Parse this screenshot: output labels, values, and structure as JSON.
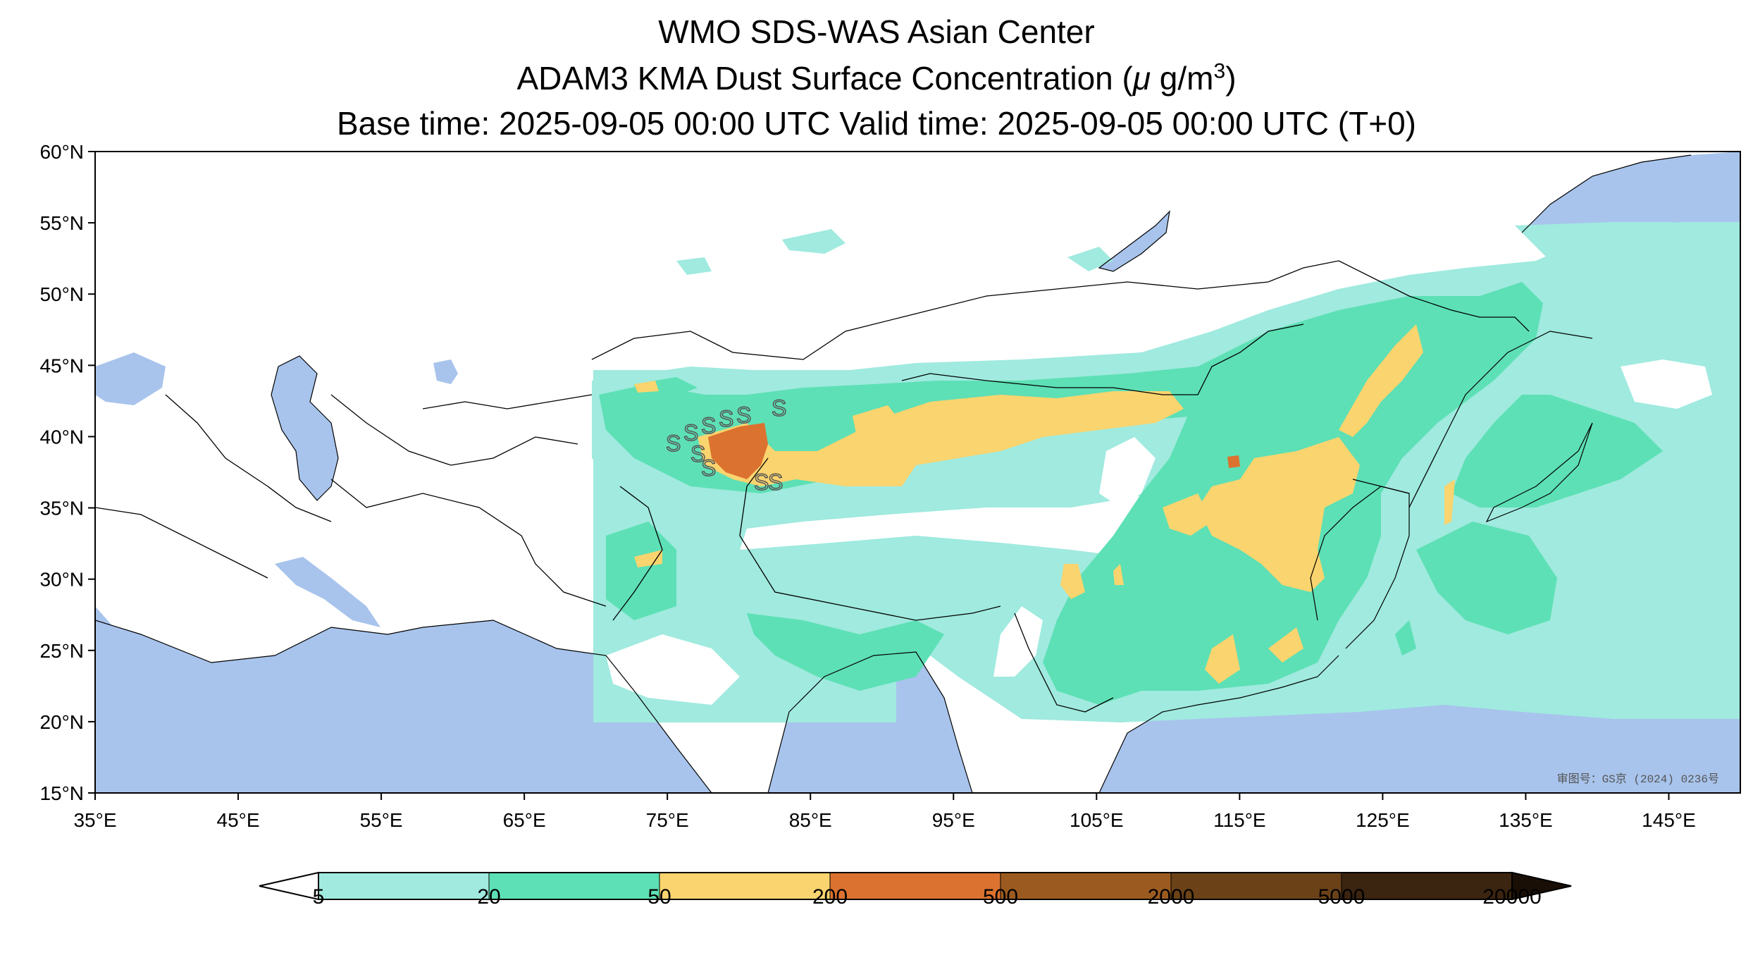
{
  "title": {
    "line1": "WMO SDS-WAS Asian Center",
    "line2_prefix": "ADAM3 KMA Dust Surface Concentration (",
    "line2_unit_mu": "μ",
    "line2_unit_g": " g/m",
    "line2_unit_exp": "3",
    "line2_suffix": ")",
    "line3": "Base time: 2025-09-05 00:00 UTC Valid time: 2025-09-05 00:00 UTC (T+0)"
  },
  "map": {
    "lat_ticks": [
      "60°N",
      "55°N",
      "50°N",
      "45°N",
      "40°N",
      "35°N",
      "30°N",
      "25°N",
      "20°N",
      "15°N"
    ],
    "lon_ticks": [
      "35°E",
      "45°E",
      "55°E",
      "65°E",
      "75°E",
      "85°E",
      "95°E",
      "105°E",
      "115°E",
      "125°E",
      "135°E",
      "145°E"
    ],
    "extent": {
      "lon_min": 35,
      "lon_max": 150,
      "lat_min": 15,
      "lat_max": 60
    },
    "watermark": "审图号：GS京 (2024) 0236号",
    "ocean_color": "#a8c4ec",
    "land_color": "#ffffff",
    "storm_marker": "S"
  },
  "colorbar": {
    "levels": [
      "5",
      "20",
      "50",
      "200",
      "500",
      "2000",
      "5000",
      "20000"
    ],
    "colors": [
      "#a0eadf",
      "#5de0b5",
      "#fad46e",
      "#db7230",
      "#9b5b20",
      "#6b4218",
      "#3b2410",
      "#1a0f06"
    ]
  }
}
